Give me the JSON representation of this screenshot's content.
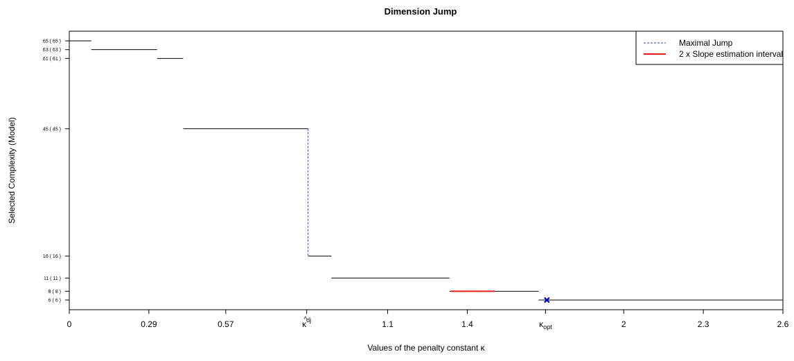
{
  "chart_data": {
    "type": "line",
    "title": "Dimension Jump",
    "xlabel": "Values of the penalty constant κ",
    "ylabel": "Selected Complexity (Model)",
    "xlim": [
      0,
      2.6
    ],
    "ylim": [
      4,
      68
    ],
    "grid": false,
    "legend_position": "top-right",
    "x_ticks": [
      {
        "value": 0,
        "label": "0"
      },
      {
        "value": 0.29,
        "label": "0.29"
      },
      {
        "value": 0.57,
        "label": "0.57"
      },
      {
        "value": 0.865,
        "label": "κ",
        "hat": "^",
        "sup": "dj"
      },
      {
        "value": 1.16,
        "label": "1.1"
      },
      {
        "value": 1.45,
        "label": "1.4"
      },
      {
        "value": 1.735,
        "label": "κ",
        "sub": "opt"
      },
      {
        "value": 2.02,
        "label": "2"
      },
      {
        "value": 2.31,
        "label": "2.3"
      },
      {
        "value": 2.6,
        "label": "2.6"
      }
    ],
    "y_ticks": [
      {
        "value": 65,
        "label": "65 ( 65 )"
      },
      {
        "value": 63,
        "label": "63 ( 63 )"
      },
      {
        "value": 61,
        "label": "61 ( 61 )"
      },
      {
        "value": 45,
        "label": "45 ( 45 )"
      },
      {
        "value": 16,
        "label": "16 ( 16 )"
      },
      {
        "value": 11,
        "label": "11 ( 11 )"
      },
      {
        "value": 8,
        "label": "8 ( 8 )"
      },
      {
        "value": 6,
        "label": "6 ( 6 )"
      }
    ],
    "steps": [
      {
        "x_start": 0.0,
        "x_end": 0.08,
        "y": 65
      },
      {
        "x_start": 0.08,
        "x_end": 0.32,
        "y": 63
      },
      {
        "x_start": 0.32,
        "x_end": 0.415,
        "y": 61
      },
      {
        "x_start": 0.415,
        "x_end": 0.87,
        "y": 45
      },
      {
        "x_start": 0.87,
        "x_end": 0.955,
        "y": 16
      },
      {
        "x_start": 0.955,
        "x_end": 1.385,
        "y": 11
      },
      {
        "x_start": 1.385,
        "x_end": 1.71,
        "y": 8
      },
      {
        "x_start": 1.71,
        "x_end": 2.6,
        "y": 6
      }
    ],
    "maximal_jump": {
      "x": 0.87,
      "y_from": 45,
      "y_to": 16,
      "color": "#3a3acd"
    },
    "slope_interval": {
      "x_start": 1.39,
      "x_end": 1.55,
      "y": 8,
      "color": "#e31a1c"
    },
    "kappa_opt_point": {
      "x": 1.74,
      "y": 6,
      "color": "#0000cc"
    },
    "legend": [
      {
        "label": "Maximal Jump",
        "style": "dashed",
        "color": "#3a3acd"
      },
      {
        "label": "2 x Slope estimation interval",
        "style": "solid",
        "color": "#e31a1c"
      }
    ]
  }
}
